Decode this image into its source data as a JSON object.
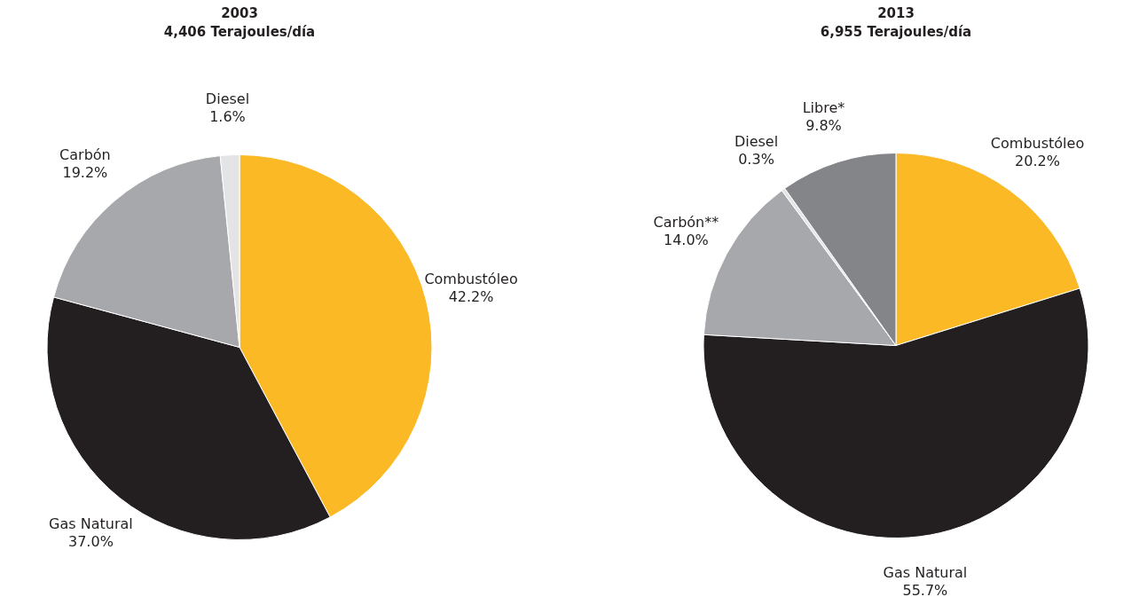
{
  "chart_data": [
    {
      "type": "pie",
      "title": "2003",
      "subtitle": "4,406 Terajoules/día",
      "categories": [
        "Combustóleo",
        "Gas Natural",
        "Carbón",
        "Diesel"
      ],
      "values": [
        42.2,
        37.0,
        19.2,
        1.6
      ],
      "value_labels": [
        "42.2%",
        "37.0%",
        "19.2%",
        "1.6%"
      ],
      "colors": [
        "#fbb925",
        "#231f20",
        "#a7a8ab",
        "#e4e4e6"
      ]
    },
    {
      "type": "pie",
      "title": "2013",
      "subtitle": "6,955 Terajoules/día",
      "categories": [
        "Combustóleo",
        "Gas Natural",
        "Carbón**",
        "Diesel",
        "Libre*"
      ],
      "values": [
        20.2,
        55.7,
        14.0,
        0.3,
        9.8
      ],
      "value_labels": [
        "20.2%",
        "55.7%",
        "14.0%",
        "0.3%",
        "9.8%"
      ],
      "colors": [
        "#fbb925",
        "#231f20",
        "#a7a8ab",
        "#e4e4e6",
        "#848589"
      ]
    }
  ]
}
